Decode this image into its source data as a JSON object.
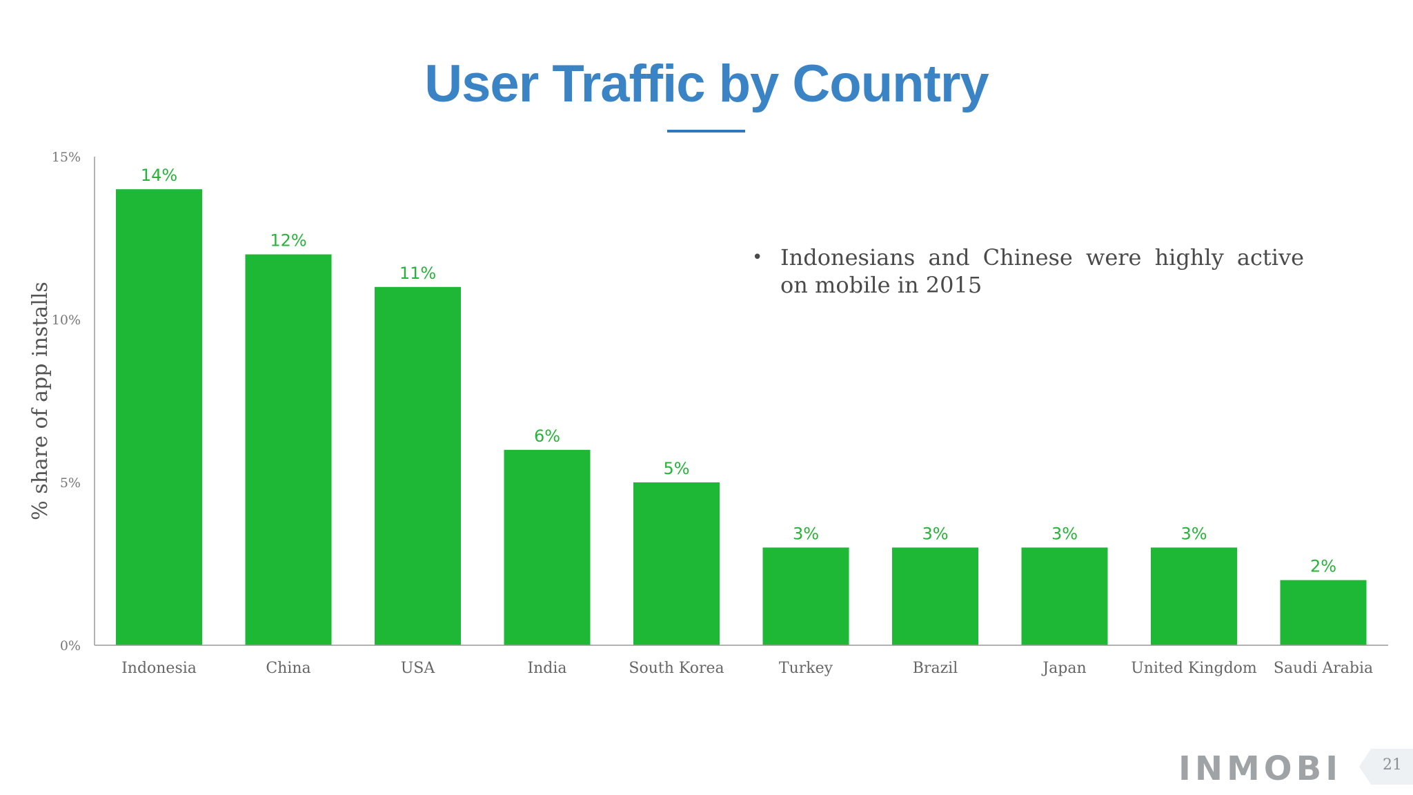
{
  "slide": {
    "title": "User Traffic by Country",
    "bullet": "Indonesians and Chinese were highly active on mobile in 2015",
    "logo_text": "INMOBI",
    "page_number": "21"
  },
  "colors": {
    "title": "#3a84c6",
    "bar": "#1eb836",
    "data_label": "#27b33a",
    "axis": "#999999"
  },
  "chart_data": {
    "type": "bar",
    "title": "User Traffic by Country",
    "xlabel": "",
    "ylabel": "% share of app installs",
    "ylim": [
      0,
      15
    ],
    "yticks": [
      0,
      5,
      10,
      15
    ],
    "ytick_labels": [
      "0%",
      "5%",
      "10%",
      "15%"
    ],
    "categories": [
      "Indonesia",
      "China",
      "USA",
      "India",
      "South Korea",
      "Turkey",
      "Brazil",
      "Japan",
      "United Kingdom",
      "Saudi Arabia"
    ],
    "values": [
      14,
      12,
      11,
      6,
      5,
      3,
      3,
      3,
      3,
      2
    ],
    "data_labels": [
      "14%",
      "12%",
      "11%",
      "6%",
      "5%",
      "3%",
      "3%",
      "3%",
      "3%",
      "2%"
    ],
    "grid": false,
    "legend": "none"
  }
}
